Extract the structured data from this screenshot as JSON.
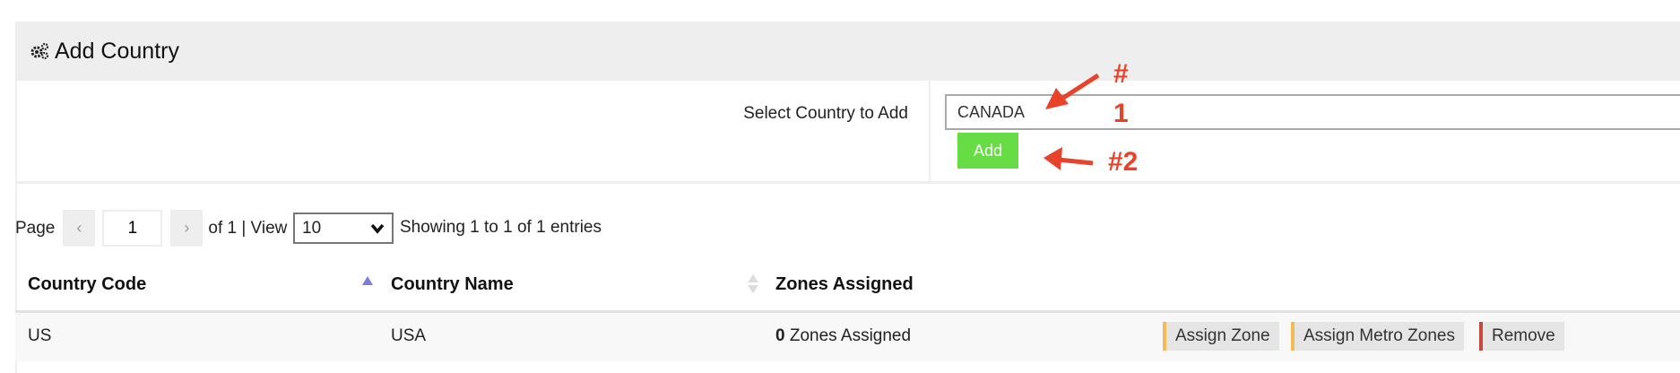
{
  "header": {
    "title": "Add Country",
    "icon": "gears-icon"
  },
  "form": {
    "label": "Select Country to Add",
    "value": "CANADA",
    "add_label": "Add"
  },
  "pagination": {
    "page_label": "Page",
    "prev": "‹",
    "page": "1",
    "next": "›",
    "of_view": "of 1 | View",
    "view_value": "10",
    "showing": "Showing 1 to 1 of 1 entries"
  },
  "table": {
    "columns": [
      "Country Code",
      "Country Name",
      "Zones Assigned"
    ],
    "rows": [
      {
        "code": "US",
        "name": "USA",
        "zones_count": "0",
        "zones_text": " Zones Assigned"
      }
    ],
    "actions": [
      "Assign Zone",
      "Assign Metro Zones",
      "Remove"
    ]
  },
  "annotations": {
    "a1_line1": "#",
    "a1_line2": "1",
    "a2": "#2"
  },
  "colors": {
    "add": "#66dd44",
    "assign": "#f5b955",
    "remove": "#c9473a",
    "annotation": "#e8432a"
  }
}
